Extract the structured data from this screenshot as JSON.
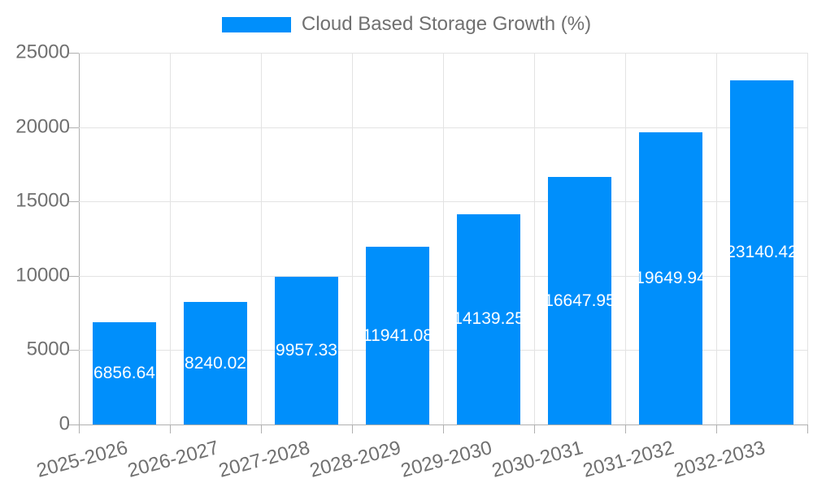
{
  "legend": {
    "label": "Cloud Based Storage Growth (%)"
  },
  "colors": {
    "bar": "#008FFB",
    "grid": "#e3e3e3",
    "axis_line": "#b0b0b0",
    "axis_text": "#707070",
    "bar_label_text": "#ffffff"
  },
  "chart_data": {
    "type": "bar",
    "title": "",
    "xlabel": "",
    "ylabel": "",
    "categories": [
      "2025-2026",
      "2026-2027",
      "2027-2028",
      "2028-2029",
      "2029-2030",
      "2030-2031",
      "2031-2032",
      "2032-2033"
    ],
    "series": [
      {
        "name": "Cloud Based Storage Growth (%)",
        "values": [
          6856.64,
          8240.02,
          9957.33,
          11941.08,
          14139.25,
          16647.95,
          19649.94,
          23140.42
        ]
      }
    ],
    "bar_labels": [
      "6856.64",
      "8240.02",
      "9957.33",
      "11941.08",
      "14139.25",
      "16647.95",
      "19649.94",
      "23140.42"
    ],
    "ylim": [
      0,
      25000
    ],
    "yticks": [
      0,
      5000,
      10000,
      15000,
      20000,
      25000
    ],
    "ytick_labels": [
      "0",
      "5000",
      "10000",
      "15000",
      "20000",
      "25000"
    ],
    "grid": true,
    "legend_position": "top",
    "x_label_rotation": -15
  }
}
